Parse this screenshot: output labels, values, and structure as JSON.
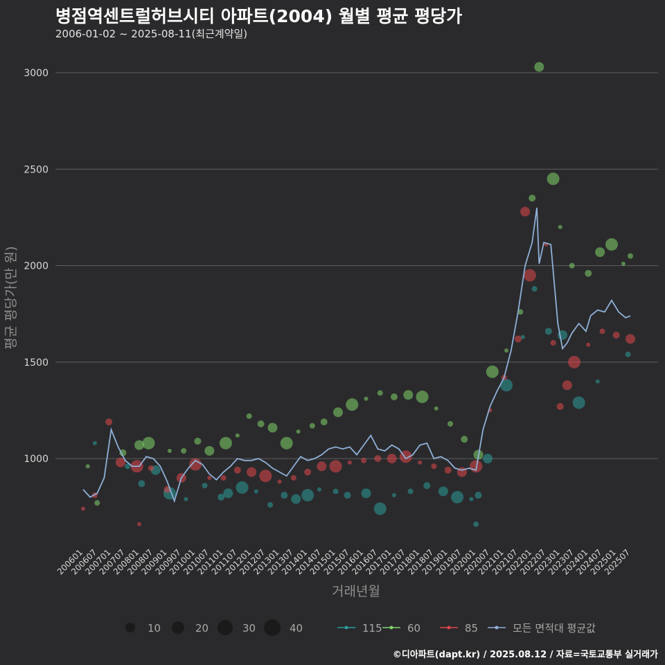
{
  "title": "병점역센트럴허브시티 아파트(2004) 월별 평균 평당가",
  "subtitle": "2006-01-02 ~ 2025-08-11(최근계약일)",
  "credit": "©디아파트(dapt.kr) / 2025.08.12 / 자료=국토교통부 실거래가",
  "colors": {
    "background": "#2a2a2c",
    "s115": "#2a9d9a",
    "s60": "#7fd36a",
    "s85": "#e0474c",
    "avg": "#8fb0d8"
  },
  "chart_data": {
    "type": "scatter",
    "xlabel": "거래년월",
    "ylabel": "평균 평당가(만 원)",
    "ylim": [
      600,
      3050
    ],
    "yticks": [
      1000,
      1500,
      2000,
      2500,
      3000
    ],
    "grid": true,
    "legend_position": "bottom",
    "xtick_labels": [
      "200601",
      "200607",
      "200701",
      "200707",
      "200801",
      "200807",
      "200901",
      "200907",
      "201001",
      "201007",
      "201101",
      "201107",
      "201201",
      "201207",
      "201301",
      "201307",
      "201401",
      "201407",
      "201501",
      "201507",
      "201601",
      "201607",
      "201701",
      "201707",
      "201801",
      "201807",
      "201901",
      "201907",
      "202001",
      "202007",
      "202101",
      "202107",
      "202201",
      "202207",
      "202301",
      "202307",
      "202401",
      "202407",
      "202501",
      "202507"
    ],
    "size_legend": {
      "values": [
        10,
        20,
        30,
        40
      ]
    },
    "series": [
      {
        "name": "115",
        "kind": "scatter",
        "color": "#2a9d9a",
        "points": [
          [
            "2006-06",
            1080
          ],
          [
            "2007-08",
            960
          ],
          [
            "2008-02",
            870
          ],
          [
            "2008-08",
            940
          ],
          [
            "2009-02",
            820
          ],
          [
            "2009-09",
            790
          ],
          [
            "2010-05",
            860
          ],
          [
            "2010-12",
            800
          ],
          [
            "2011-03",
            820
          ],
          [
            "2011-09",
            850
          ],
          [
            "2012-03",
            830
          ],
          [
            "2012-09",
            760
          ],
          [
            "2013-03",
            810
          ],
          [
            "2013-08",
            790
          ],
          [
            "2014-01",
            810
          ],
          [
            "2014-06",
            840
          ],
          [
            "2015-01",
            830
          ],
          [
            "2015-06",
            810
          ],
          [
            "2016-02",
            820
          ],
          [
            "2016-08",
            740
          ],
          [
            "2017-02",
            810
          ],
          [
            "2017-09",
            830
          ],
          [
            "2018-04",
            860
          ],
          [
            "2018-11",
            830
          ],
          [
            "2019-05",
            800
          ],
          [
            "2019-11",
            790
          ],
          [
            "2020-01",
            660
          ],
          [
            "2020-02",
            810
          ],
          [
            "2020-06",
            1000
          ],
          [
            "2021-02",
            1380
          ],
          [
            "2021-09",
            1630
          ],
          [
            "2022-02",
            1880
          ],
          [
            "2022-08",
            1660
          ],
          [
            "2023-02",
            1640
          ],
          [
            "2023-09",
            1290
          ],
          [
            "2024-05",
            1400
          ],
          [
            "2025-06",
            1540
          ]
        ]
      },
      {
        "name": "60",
        "kind": "scatter",
        "color": "#7fd36a",
        "points": [
          [
            "2006-03",
            960
          ],
          [
            "2006-07",
            770
          ],
          [
            "2007-06",
            1030
          ],
          [
            "2008-01",
            1070
          ],
          [
            "2008-05",
            1080
          ],
          [
            "2009-02",
            1040
          ],
          [
            "2009-08",
            1040
          ],
          [
            "2010-02",
            1090
          ],
          [
            "2010-07",
            1040
          ],
          [
            "2011-02",
            1080
          ],
          [
            "2011-07",
            1120
          ],
          [
            "2011-12",
            1220
          ],
          [
            "2012-05",
            1180
          ],
          [
            "2012-10",
            1160
          ],
          [
            "2013-04",
            1080
          ],
          [
            "2013-09",
            1140
          ],
          [
            "2014-03",
            1170
          ],
          [
            "2014-08",
            1190
          ],
          [
            "2015-02",
            1240
          ],
          [
            "2015-08",
            1280
          ],
          [
            "2016-02",
            1310
          ],
          [
            "2016-08",
            1340
          ],
          [
            "2017-02",
            1320
          ],
          [
            "2017-08",
            1330
          ],
          [
            "2018-02",
            1320
          ],
          [
            "2018-08",
            1260
          ],
          [
            "2019-02",
            1180
          ],
          [
            "2019-08",
            1100
          ],
          [
            "2020-02",
            1020
          ],
          [
            "2020-08",
            1450
          ],
          [
            "2021-02",
            1560
          ],
          [
            "2021-08",
            1760
          ],
          [
            "2022-01",
            2350
          ],
          [
            "2022-04",
            3030
          ],
          [
            "2022-10",
            2450
          ],
          [
            "2023-01",
            2200
          ],
          [
            "2023-06",
            2000
          ],
          [
            "2024-01",
            1960
          ],
          [
            "2024-06",
            2070
          ],
          [
            "2024-11",
            2110
          ],
          [
            "2025-04",
            2010
          ],
          [
            "2025-07",
            2050
          ]
        ]
      },
      {
        "name": "85",
        "kind": "scatter",
        "color": "#e0474c",
        "points": [
          [
            "2006-01",
            740
          ],
          [
            "2006-06",
            810
          ],
          [
            "2006-12",
            1190
          ],
          [
            "2007-05",
            980
          ],
          [
            "2007-12",
            960
          ],
          [
            "2008-01",
            660
          ],
          [
            "2008-06",
            950
          ],
          [
            "2009-01",
            840
          ],
          [
            "2009-07",
            900
          ],
          [
            "2010-01",
            970
          ],
          [
            "2010-07",
            900
          ],
          [
            "2011-01",
            900
          ],
          [
            "2011-07",
            940
          ],
          [
            "2012-01",
            930
          ],
          [
            "2012-07",
            910
          ],
          [
            "2013-01",
            880
          ],
          [
            "2013-07",
            900
          ],
          [
            "2014-01",
            930
          ],
          [
            "2014-07",
            960
          ],
          [
            "2015-01",
            960
          ],
          [
            "2015-07",
            980
          ],
          [
            "2016-01",
            990
          ],
          [
            "2016-07",
            1000
          ],
          [
            "2017-01",
            1000
          ],
          [
            "2017-07",
            1010
          ],
          [
            "2018-01",
            980
          ],
          [
            "2018-07",
            960
          ],
          [
            "2019-01",
            940
          ],
          [
            "2019-07",
            930
          ],
          [
            "2020-01",
            960
          ],
          [
            "2020-07",
            1250
          ],
          [
            "2021-01",
            1420
          ],
          [
            "2021-07",
            1620
          ],
          [
            "2021-10",
            2280
          ],
          [
            "2021-12",
            1950
          ],
          [
            "2022-07",
            2110
          ],
          [
            "2022-10",
            1600
          ],
          [
            "2023-01",
            1270
          ],
          [
            "2023-04",
            1380
          ],
          [
            "2023-07",
            1500
          ],
          [
            "2024-01",
            1590
          ],
          [
            "2024-07",
            1660
          ],
          [
            "2025-01",
            1640
          ],
          [
            "2025-07",
            1620
          ]
        ]
      },
      {
        "name": "모든 면적대 평균값",
        "kind": "line",
        "color": "#8fb0d8",
        "points": [
          [
            "2006-01",
            840
          ],
          [
            "2006-04",
            800
          ],
          [
            "2006-07",
            820
          ],
          [
            "2006-10",
            900
          ],
          [
            "2007-01",
            1150
          ],
          [
            "2007-04",
            1060
          ],
          [
            "2007-07",
            990
          ],
          [
            "2007-10",
            960
          ],
          [
            "2008-01",
            960
          ],
          [
            "2008-04",
            1010
          ],
          [
            "2008-07",
            1000
          ],
          [
            "2008-10",
            960
          ],
          [
            "2009-01",
            880
          ],
          [
            "2009-04",
            780
          ],
          [
            "2009-07",
            900
          ],
          [
            "2009-10",
            950
          ],
          [
            "2010-01",
            990
          ],
          [
            "2010-04",
            970
          ],
          [
            "2010-07",
            920
          ],
          [
            "2010-10",
            890
          ],
          [
            "2011-01",
            930
          ],
          [
            "2011-04",
            960
          ],
          [
            "2011-07",
            1000
          ],
          [
            "2011-10",
            990
          ],
          [
            "2012-01",
            990
          ],
          [
            "2012-04",
            1000
          ],
          [
            "2012-07",
            980
          ],
          [
            "2012-10",
            950
          ],
          [
            "2013-01",
            930
          ],
          [
            "2013-04",
            910
          ],
          [
            "2013-07",
            960
          ],
          [
            "2013-10",
            1010
          ],
          [
            "2014-01",
            990
          ],
          [
            "2014-04",
            1000
          ],
          [
            "2014-07",
            1020
          ],
          [
            "2014-10",
            1050
          ],
          [
            "2015-01",
            1060
          ],
          [
            "2015-04",
            1050
          ],
          [
            "2015-07",
            1060
          ],
          [
            "2015-10",
            1020
          ],
          [
            "2016-01",
            1070
          ],
          [
            "2016-04",
            1120
          ],
          [
            "2016-07",
            1050
          ],
          [
            "2016-10",
            1040
          ],
          [
            "2017-01",
            1070
          ],
          [
            "2017-04",
            1050
          ],
          [
            "2017-07",
            1000
          ],
          [
            "2017-10",
            1020
          ],
          [
            "2018-01",
            1070
          ],
          [
            "2018-04",
            1080
          ],
          [
            "2018-07",
            1000
          ],
          [
            "2018-10",
            1010
          ],
          [
            "2019-01",
            990
          ],
          [
            "2019-04",
            950
          ],
          [
            "2019-07",
            940
          ],
          [
            "2019-10",
            950
          ],
          [
            "2020-01",
            940
          ],
          [
            "2020-04",
            1150
          ],
          [
            "2020-07",
            1270
          ],
          [
            "2020-10",
            1350
          ],
          [
            "2021-01",
            1420
          ],
          [
            "2021-04",
            1560
          ],
          [
            "2021-07",
            1760
          ],
          [
            "2021-10",
            2000
          ],
          [
            "2022-01",
            2120
          ],
          [
            "2022-03",
            2300
          ],
          [
            "2022-04",
            2010
          ],
          [
            "2022-06",
            2120
          ],
          [
            "2022-09",
            2110
          ],
          [
            "2022-12",
            1700
          ],
          [
            "2023-02",
            1570
          ],
          [
            "2023-04",
            1600
          ],
          [
            "2023-06",
            1650
          ],
          [
            "2023-09",
            1700
          ],
          [
            "2023-12",
            1660
          ],
          [
            "2024-02",
            1740
          ],
          [
            "2024-05",
            1770
          ],
          [
            "2024-08",
            1760
          ],
          [
            "2024-11",
            1820
          ],
          [
            "2025-02",
            1760
          ],
          [
            "2025-05",
            1730
          ],
          [
            "2025-07",
            1740
          ]
        ]
      }
    ]
  }
}
